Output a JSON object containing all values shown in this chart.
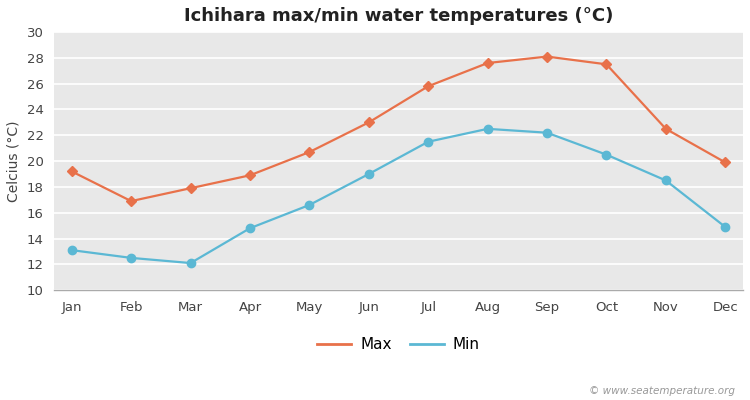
{
  "months": [
    "Jan",
    "Feb",
    "Mar",
    "Apr",
    "May",
    "Jun",
    "Jul",
    "Aug",
    "Sep",
    "Oct",
    "Nov",
    "Dec"
  ],
  "max_temps": [
    19.2,
    16.9,
    17.9,
    18.9,
    20.7,
    23.0,
    25.8,
    27.6,
    28.1,
    27.5,
    22.5,
    19.9
  ],
  "min_temps": [
    13.1,
    12.5,
    12.1,
    14.8,
    16.6,
    19.0,
    21.5,
    22.5,
    22.2,
    20.5,
    18.5,
    14.9
  ],
  "max_color": "#e8714a",
  "min_color": "#5bb8d4",
  "figure_bg": "#ffffff",
  "plot_bg": "#e8e8e8",
  "grid_color": "#ffffff",
  "title": "Ichihara max/min water temperatures (°C)",
  "ylabel": "Celcius (°C)",
  "ylim": [
    10,
    30
  ],
  "yticks": [
    10,
    12,
    14,
    16,
    18,
    20,
    22,
    24,
    26,
    28,
    30
  ],
  "legend_max": "Max",
  "legend_min": "Min",
  "watermark": "© www.seatemperature.org",
  "title_fontsize": 13,
  "label_fontsize": 10,
  "tick_fontsize": 9.5,
  "watermark_fontsize": 7.5
}
